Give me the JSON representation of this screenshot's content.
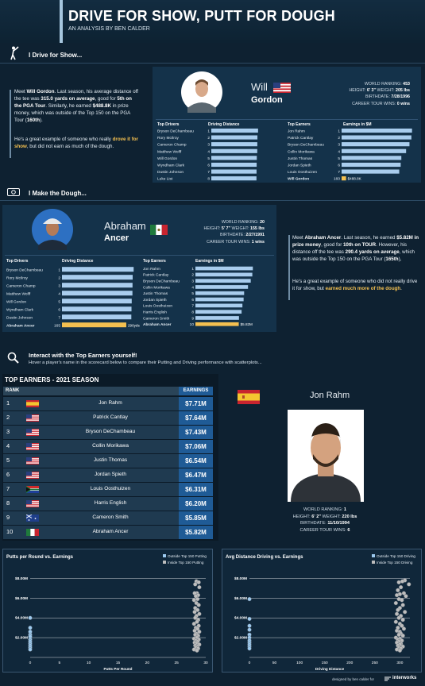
{
  "header": {
    "title": "DRIVE FOR SHOW, PUTT FOR DOUGH",
    "subtitle": "AN ANALYSIS BY BEN CALDER"
  },
  "section1": {
    "title": "I Drive for Show...",
    "para1_parts": [
      "Meet ",
      "Will Gordon",
      ". Last season, his average distance off the tee was ",
      "315.0 yards on average",
      ", good for ",
      "5th on the PGA Tour",
      ". Similarly, he earned ",
      "$488.8K",
      " in prize money, which was outside of the Top 150 on the PGA Tour (",
      "160th",
      ")."
    ],
    "para2_parts": [
      "He's a great example of someone who really ",
      "drove it for show",
      ", but did not earn as much of the dough."
    ],
    "player": {
      "first": "Will",
      "last": "Gordon",
      "flag": "usa",
      "stats": [
        {
          "label": "WORLD RANKING:",
          "value": "453"
        },
        {
          "label": "HEIGHT:",
          "value": "6' 3\""
        },
        {
          "label": "WEIGHT:",
          "value": "205 lbs"
        },
        {
          "label": "BIRTHDATE:",
          "value": "7/28/1996"
        },
        {
          "label": "CAREER TOUR WINS:",
          "value": "0 wins"
        }
      ]
    },
    "drivers_header": "Top Drivers",
    "drivers_metric_header": "Driving Distance",
    "earners_header": "Top Earners",
    "earners_metric_header": "Earnings in $M"
  },
  "section2": {
    "title": "I Make the Dough...",
    "para1_parts": [
      "Meet ",
      "Abraham Ancer",
      ". Last season, he earned ",
      "$5.82M in prize money",
      ", good for ",
      "10th on TOUR",
      ". However, his distance off the tee was ",
      "290.4 yards on average",
      ", which was outside the Top 150 on the PGA Tour (",
      "165th",
      "),"
    ],
    "para2_parts": [
      "He's a great example of someone who did not really drive it for show, but ",
      "earned much more of the dough",
      "."
    ],
    "player": {
      "first": "Abraham",
      "last": "Ancer",
      "flag": "mexico",
      "stats": [
        {
          "label": "WORLD RANKING:",
          "value": "20"
        },
        {
          "label": "HEIGHT:",
          "value": "5' 7\""
        },
        {
          "label": "WEIGHT:",
          "value": "155 lbs"
        },
        {
          "label": "BIRTHDATE:",
          "value": "2/27/1991"
        },
        {
          "label": "CAREER TOUR WINS:",
          "value": "1 wins"
        }
      ]
    },
    "drivers_header": "Top Drivers",
    "drivers_metric_header": "Driving Distance",
    "earners_header": "Top Earners",
    "earners_metric_header": "Earnings in $M"
  },
  "interact": {
    "title": "Interact with the Top Earners yourself!",
    "subtitle": "Hover a player's name in the scorecard below to compare their Putting and Driving performance with scatterplots..."
  },
  "earners_table": {
    "title": "TOP EARNERS - 2021 SEASON",
    "col_rank": "RANK",
    "col_earnings": "EARNINGS",
    "rows": [
      {
        "rank": "1",
        "name": "Jon Rahm",
        "earnings": "$7.71M",
        "flag": "spain"
      },
      {
        "rank": "2",
        "name": "Patrick Cantlay",
        "earnings": "$7.64M",
        "flag": "usa"
      },
      {
        "rank": "3",
        "name": "Bryson DeChambeau",
        "earnings": "$7.43M",
        "flag": "usa"
      },
      {
        "rank": "4",
        "name": "Collin Morikawa",
        "earnings": "$7.06M",
        "flag": "usa"
      },
      {
        "rank": "5",
        "name": "Justin Thomas",
        "earnings": "$6.54M",
        "flag": "usa"
      },
      {
        "rank": "6",
        "name": "Jordan Spieth",
        "earnings": "$6.47M",
        "flag": "usa"
      },
      {
        "rank": "7",
        "name": "Louis Oosthuizen",
        "earnings": "$6.31M",
        "flag": "southafrica"
      },
      {
        "rank": "8",
        "name": "Harris English",
        "earnings": "$6.20M",
        "flag": "usa"
      },
      {
        "rank": "9",
        "name": "Cameron Smith",
        "earnings": "$5.85M",
        "flag": "australia"
      },
      {
        "rank": "10",
        "name": "Abraham Ancer",
        "earnings": "$5.82M",
        "flag": "mexico"
      }
    ]
  },
  "featured": {
    "name": "Jon Rahm",
    "flag": "spain",
    "stats": [
      {
        "label": "WORLD RANKING:",
        "value": "1"
      },
      {
        "label": "HEIGHT:",
        "value": "6' 2\""
      },
      {
        "label": "WEIGHT:",
        "value": "220 lbs"
      },
      {
        "label": "BIRTHDATE:",
        "value": "11/10/1994"
      },
      {
        "label": "CAREER TOUR WINS:",
        "value": "6"
      }
    ]
  },
  "footer": {
    "credit": "designed by ben calder for",
    "brand": "interworks"
  },
  "chart_data": [
    {
      "type": "bar",
      "title": "",
      "categories": [
        "Bryson DeChambeau",
        "Rory McIlroy",
        "Cameron Champ",
        "Matthew Wolff",
        "Will Gordon",
        "Wyndham Clark",
        "Dustin Johnson",
        "Luke List"
      ],
      "ranks": [
        "1",
        "2",
        "3",
        "4",
        "5",
        "6",
        "7",
        "8"
      ],
      "values": [
        323.7,
        319.3,
        318.6,
        318.2,
        315.0,
        314.0,
        313.2,
        312.6
      ],
      "highlight": "Will Gordon",
      "highlight_label": "315yds",
      "xlim": [
        0,
        330
      ],
      "unit": "yards"
    },
    {
      "type": "bar",
      "title": "",
      "categories": [
        "Jon Rahm",
        "Patrick Cantlay",
        "Bryson DeChambeau",
        "Collin Morikawa",
        "Justin Thomas",
        "Jordan Spieth",
        "Louis Oosthuizen",
        "Will Gordon"
      ],
      "ranks": [
        "1",
        "2",
        "3",
        "4",
        "5",
        "6",
        "7",
        "160"
      ],
      "values": [
        7.71,
        7.64,
        7.43,
        7.06,
        6.54,
        6.47,
        6.31,
        0.4888
      ],
      "highlight": "Will Gordon",
      "highlight_label": "$488.8K",
      "xlim": [
        0,
        8
      ],
      "unit": "$M"
    },
    {
      "type": "bar",
      "title": "",
      "categories": [
        "Bryson DeChambeau",
        "Rory McIlroy",
        "Cameron Champ",
        "Matthew Wolff",
        "Will Gordon",
        "Wyndham Clark",
        "Dustin Johnson",
        "Abraham Ancer"
      ],
      "ranks": [
        "1",
        "2",
        "3",
        "4",
        "5",
        "6",
        "7",
        "165"
      ],
      "values": [
        323.7,
        319.3,
        318.6,
        318.2,
        315.0,
        314.0,
        313.2,
        290.4
      ],
      "highlight": "Abraham Ancer",
      "highlight_label": "290yds",
      "xlim": [
        0,
        330
      ],
      "unit": "yards"
    },
    {
      "type": "bar",
      "title": "",
      "categories": [
        "Jon Rahm",
        "Patrick Cantlay",
        "Bryson DeChambeau",
        "Collin Morikawa",
        "Justin Thomas",
        "Jordan Spieth",
        "Louis Oosthuizen",
        "Harris English",
        "Cameron Smith",
        "Abraham Ancer"
      ],
      "ranks": [
        "1",
        "2",
        "3",
        "4",
        "5",
        "6",
        "7",
        "8",
        "9",
        "10"
      ],
      "values": [
        7.71,
        7.64,
        7.43,
        7.06,
        6.54,
        6.47,
        6.31,
        6.2,
        5.85,
        5.82
      ],
      "highlight": "Abraham Ancer",
      "highlight_label": "$5.82M",
      "xlim": [
        0,
        8
      ],
      "unit": "$M"
    },
    {
      "type": "scatter",
      "title": "Putts per Round vs. Earnings",
      "xlabel": "Putts Per Round",
      "ylabel": "",
      "xlim": [
        0,
        30
      ],
      "ylim": [
        0,
        9
      ],
      "xticks": [
        0,
        5,
        10,
        15,
        20,
        25,
        30
      ],
      "yticks": [
        2,
        4,
        6,
        8
      ],
      "ytick_labels": [
        "$2.00M",
        "$4.00M",
        "$6.00M",
        "$8.00M"
      ],
      "legend": {
        "position": "top-right",
        "entries": [
          "Outside Top 150 Putting",
          "Inside Top 150 Putting"
        ]
      },
      "series": [
        {
          "name": "Outside Top 150 Putting",
          "color": "#9cc9ee",
          "points": [
            [
              0,
              4.0
            ],
            [
              0,
              3.0
            ],
            [
              0,
              2.6
            ],
            [
              0,
              2.3
            ],
            [
              0,
              2.1
            ],
            [
              0,
              1.8
            ],
            [
              0,
              1.6
            ],
            [
              0,
              1.4
            ],
            [
              0,
              1.2
            ],
            [
              0,
              1.0
            ],
            [
              0,
              0.8
            ]
          ]
        },
        {
          "name": "Inside Top 150 Putting",
          "color": "#bdbdbd",
          "points": [
            [
              28.4,
              7.7
            ],
            [
              28.8,
              7.6
            ],
            [
              28.2,
              7.4
            ],
            [
              28.9,
              7.1
            ],
            [
              28.5,
              6.5
            ],
            [
              28.1,
              6.5
            ],
            [
              28.7,
              6.3
            ],
            [
              28.3,
              6.2
            ],
            [
              28.6,
              5.9
            ],
            [
              28.0,
              5.8
            ],
            [
              28.4,
              5.5
            ],
            [
              28.8,
              5.3
            ],
            [
              28.2,
              5.0
            ],
            [
              28.6,
              4.8
            ],
            [
              28.1,
              4.6
            ],
            [
              28.9,
              4.4
            ],
            [
              28.4,
              4.2
            ],
            [
              28.2,
              4.0
            ],
            [
              28.7,
              3.8
            ],
            [
              28.5,
              3.6
            ],
            [
              28.0,
              3.4
            ],
            [
              28.8,
              3.2
            ],
            [
              28.3,
              3.0
            ],
            [
              28.6,
              2.9
            ],
            [
              28.1,
              2.7
            ],
            [
              28.9,
              2.6
            ],
            [
              28.4,
              2.4
            ],
            [
              28.2,
              2.3
            ],
            [
              28.7,
              2.2
            ],
            [
              28.5,
              2.0
            ],
            [
              28.0,
              1.9
            ],
            [
              28.8,
              1.8
            ],
            [
              28.3,
              1.7
            ],
            [
              28.6,
              1.6
            ],
            [
              28.1,
              1.5
            ],
            [
              28.4,
              1.4
            ],
            [
              28.9,
              1.3
            ],
            [
              28.2,
              1.2
            ],
            [
              28.6,
              1.1
            ],
            [
              28.3,
              1.0
            ],
            [
              28.7,
              0.9
            ],
            [
              28.0,
              0.8
            ],
            [
              28.5,
              0.7
            ]
          ]
        }
      ]
    },
    {
      "type": "scatter",
      "title": "Avg Distance Driving vs. Earnings",
      "xlabel": "Driving Distance",
      "ylabel": "",
      "xlim": [
        0,
        320
      ],
      "ylim": [
        0,
        9
      ],
      "xticks": [
        0,
        50,
        100,
        150,
        200,
        250,
        300
      ],
      "yticks": [
        2,
        4,
        6,
        8
      ],
      "ytick_labels": [
        "$2.00M",
        "$4.00M",
        "$6.00M",
        "$8.00M"
      ],
      "legend": {
        "position": "top-right",
        "entries": [
          "Outside Top 150 Driving",
          "Inside Top 150 Driving"
        ]
      },
      "series": [
        {
          "name": "Outside Top 150 Driving",
          "color": "#9cc9ee",
          "points": [
            [
              0,
              5.9
            ],
            [
              0,
              3.9
            ],
            [
              0,
              3.2
            ],
            [
              0,
              2.8
            ],
            [
              0,
              2.3
            ],
            [
              0,
              2.0
            ],
            [
              0,
              1.7
            ],
            [
              0,
              1.5
            ],
            [
              0,
              1.3
            ],
            [
              0,
              1.1
            ],
            [
              0,
              0.9
            ]
          ]
        },
        {
          "name": "Inside Top 150 Driving",
          "color": "#bdbdbd",
          "points": [
            [
              310,
              7.8
            ],
            [
              305,
              7.7
            ],
            [
              298,
              7.6
            ],
            [
              318,
              7.4
            ],
            [
              302,
              7.1
            ],
            [
              296,
              6.8
            ],
            [
              308,
              6.5
            ],
            [
              300,
              6.4
            ],
            [
              294,
              6.3
            ],
            [
              312,
              6.2
            ],
            [
              298,
              5.9
            ],
            [
              304,
              5.8
            ],
            [
              292,
              5.5
            ],
            [
              306,
              5.3
            ],
            [
              300,
              5.0
            ],
            [
              296,
              4.8
            ],
            [
              310,
              4.6
            ],
            [
              294,
              4.4
            ],
            [
              302,
              4.2
            ],
            [
              298,
              4.0
            ],
            [
              306,
              3.8
            ],
            [
              292,
              3.6
            ],
            [
              300,
              3.4
            ],
            [
              304,
              3.2
            ],
            [
              296,
              3.0
            ],
            [
              308,
              2.9
            ],
            [
              294,
              2.7
            ],
            [
              300,
              2.6
            ],
            [
              302,
              2.4
            ],
            [
              298,
              2.3
            ],
            [
              306,
              2.2
            ],
            [
              292,
              2.0
            ],
            [
              300,
              1.9
            ],
            [
              296,
              1.8
            ],
            [
              304,
              1.7
            ],
            [
              298,
              1.6
            ],
            [
              294,
              1.5
            ],
            [
              302,
              1.4
            ],
            [
              300,
              1.3
            ],
            [
              296,
              1.2
            ],
            [
              306,
              1.1
            ],
            [
              298,
              1.0
            ],
            [
              302,
              0.9
            ],
            [
              294,
              0.8
            ],
            [
              300,
              0.7
            ]
          ]
        }
      ]
    }
  ],
  "colors": {
    "bar": "#a9cdee",
    "highlight": "#f4c050",
    "earnings_cell": "#1f5b96",
    "row_bg": "#1f3a50",
    "panel": "#14324a"
  }
}
